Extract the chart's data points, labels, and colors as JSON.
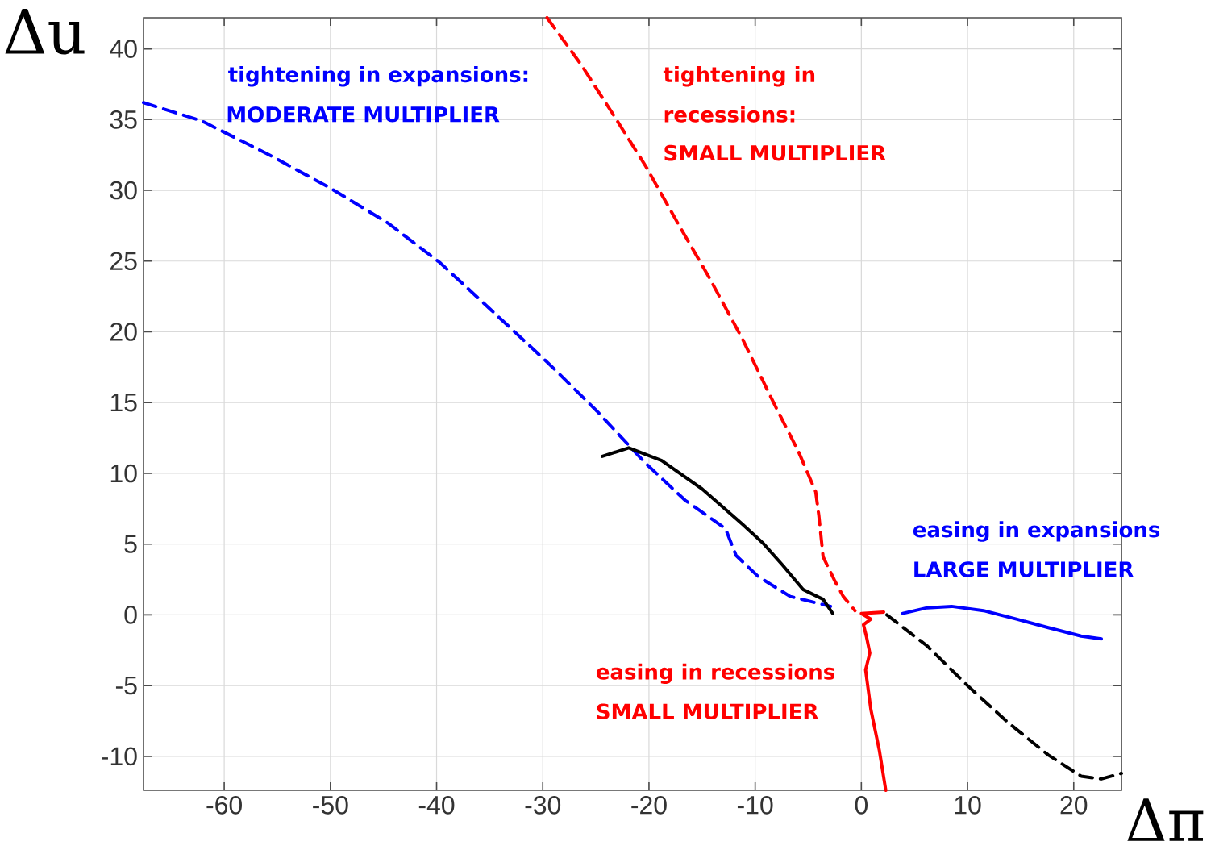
{
  "chart_data": {
    "type": "line",
    "xlabel": "Δπ",
    "ylabel": "Δu",
    "xlim": [
      -67.6,
      24.5
    ],
    "ylim": [
      -12.4,
      42.2
    ],
    "xticks": [
      -60,
      -50,
      -40,
      -30,
      -20,
      -10,
      0,
      10,
      20
    ],
    "yticks": [
      -10,
      -5,
      0,
      5,
      10,
      15,
      20,
      25,
      30,
      35,
      40
    ],
    "grid": true,
    "annotations": [
      "tightening in expansions:",
      "MODERATE MULTIPLIER",
      "tightening in",
      "recessions:",
      "SMALL MULTIPLIER",
      "easing in expansions",
      "LARGE MULTIPLIER",
      "easing in recessions",
      "SMALL MULTIPLIER"
    ],
    "series": [
      {
        "color": "#0000ff",
        "line_style": "dashed",
        "x": [
          -67.6,
          -62.1,
          -56.0,
          -50.1,
          -44.6,
          -39.7,
          -34.8,
          -29.5,
          -24.9,
          -20.3,
          -16.6,
          -12.8,
          -11.8,
          -9.7,
          -6.7,
          -2.9
        ],
        "values": [
          36.2,
          34.9,
          32.6,
          30.2,
          27.7,
          24.9,
          21.5,
          17.8,
          14.4,
          10.7,
          8.1,
          6.1,
          4.2,
          2.7,
          1.3,
          0.6
        ]
      },
      {
        "color": "#ff0000",
        "line_style": "dashed",
        "x": [
          -29.6,
          -26.4,
          -23.4,
          -20.3,
          -17.3,
          -14.3,
          -11.2,
          -8.2,
          -5.9,
          -4.3,
          -4.0,
          -3.6,
          -2.5,
          -1.7,
          -0.6
        ],
        "values": [
          42.2,
          38.9,
          35.4,
          31.7,
          27.7,
          23.8,
          19.5,
          14.9,
          11.5,
          8.7,
          7.0,
          4.1,
          2.4,
          1.3,
          0.3
        ]
      },
      {
        "color": "#000000",
        "line_style": "solid",
        "x": [
          -24.4,
          -21.9,
          -18.8,
          -15.0,
          -11.2,
          -9.3,
          -7.4,
          -5.5,
          -3.6,
          -2.7
        ],
        "values": [
          11.2,
          11.8,
          10.9,
          8.9,
          6.4,
          5.1,
          3.5,
          1.8,
          1.1,
          0.1
        ]
      },
      {
        "color": "#000000",
        "line_style": "dashed",
        "x": [
          2.4,
          6.2,
          10.0,
          13.8,
          17.6,
          20.7,
          22.6,
          24.5
        ],
        "values": [
          0,
          -2.2,
          -5.0,
          -7.6,
          -9.9,
          -11.4,
          -11.6,
          -11.2
        ]
      },
      {
        "color": "#0000ff",
        "line_style": "solid",
        "x": [
          3.9,
          6.2,
          8.5,
          11.5,
          14.6,
          17.6,
          20.7,
          22.6
        ],
        "values": [
          0.1,
          0.5,
          0.6,
          0.3,
          -0.3,
          -0.9,
          -1.5,
          -1.7
        ]
      },
      {
        "color": "#ff0000",
        "line_style": "solid",
        "x": [
          2.1,
          0,
          0.9,
          0.2,
          0.5,
          0.8,
          0.4,
          0.9,
          1.7,
          2.3
        ],
        "values": [
          0.2,
          0.1,
          -0.3,
          -0.7,
          -1.6,
          -2.7,
          -3.9,
          -6.7,
          -9.6,
          -12.4
        ]
      }
    ]
  }
}
